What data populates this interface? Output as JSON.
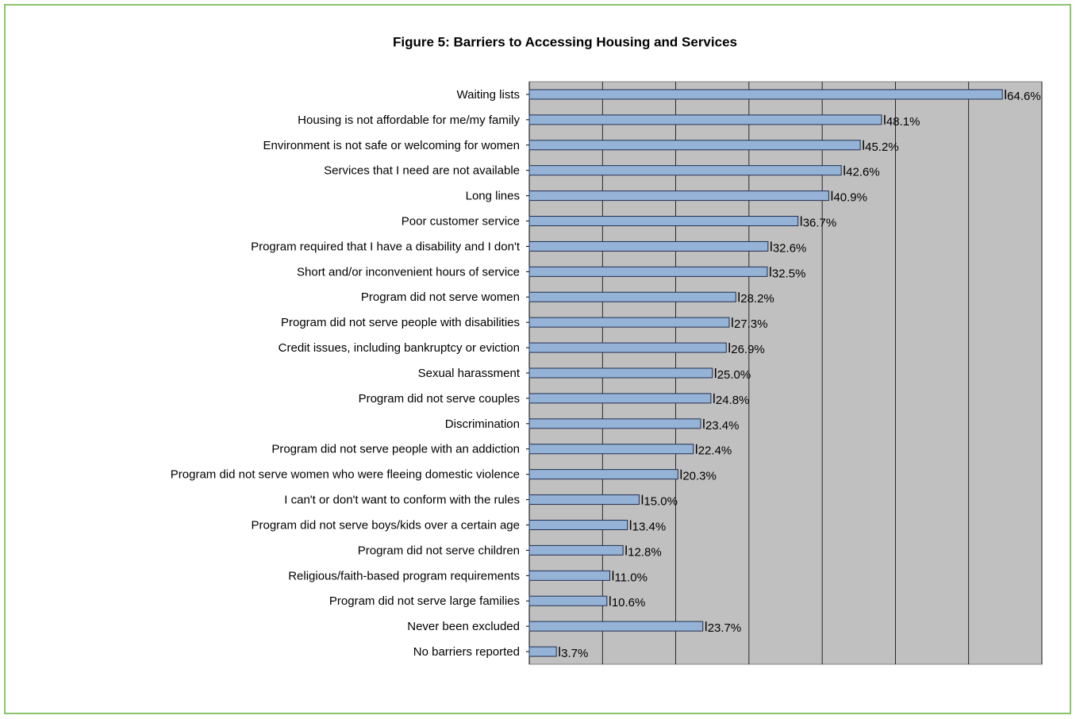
{
  "chart_data": {
    "type": "bar",
    "orientation": "horizontal",
    "title": "Figure 5: Barriers to Accessing Housing and Services",
    "categories": [
      "Waiting lists",
      "Housing is not affordable for me/my family",
      "Environment is not safe or welcoming for women",
      "Services that I need are not available",
      "Long lines",
      "Poor customer service",
      "Program required that I have a disability and I don't",
      "Short and/or inconvenient hours of service",
      "Program did not serve women",
      "Program did not serve people with disabilities",
      "Credit issues, including bankruptcy or eviction",
      "Sexual harassment",
      "Program did not serve couples",
      "Discrimination",
      "Program did not serve people with an addiction",
      "Program did not serve women who were fleeing domestic violence",
      "I can't or don't want to conform with the rules",
      "Program did not serve boys/kids over a certain age",
      "Program did not serve children",
      "Religious/faith-based program requirements",
      "Program did not serve large families",
      "Never been excluded",
      "No barriers reported"
    ],
    "values": [
      64.6,
      48.1,
      45.2,
      42.6,
      40.9,
      36.7,
      32.6,
      32.5,
      28.2,
      27.3,
      26.9,
      25.0,
      24.8,
      23.4,
      22.4,
      20.3,
      15.0,
      13.4,
      12.8,
      11.0,
      10.6,
      23.7,
      3.7
    ],
    "value_labels": [
      "64.6%",
      "48.1%",
      "45.2%",
      "42.6%",
      "40.9%",
      "36.7%",
      "32.6%",
      "32.5%",
      "28.2%",
      "27.3%",
      "26.9%",
      "25.0%",
      "24.8%",
      "23.4%",
      "22.4%",
      "20.3%",
      "15.0%",
      "13.4%",
      "12.8%",
      "11.0%",
      "10.6%",
      "23.7%",
      "3.7%"
    ],
    "color": "#95b3d7",
    "xlim": [
      0,
      70
    ],
    "xticks": [
      0,
      10,
      20,
      30,
      40,
      50,
      60,
      70
    ],
    "grid": true
  }
}
